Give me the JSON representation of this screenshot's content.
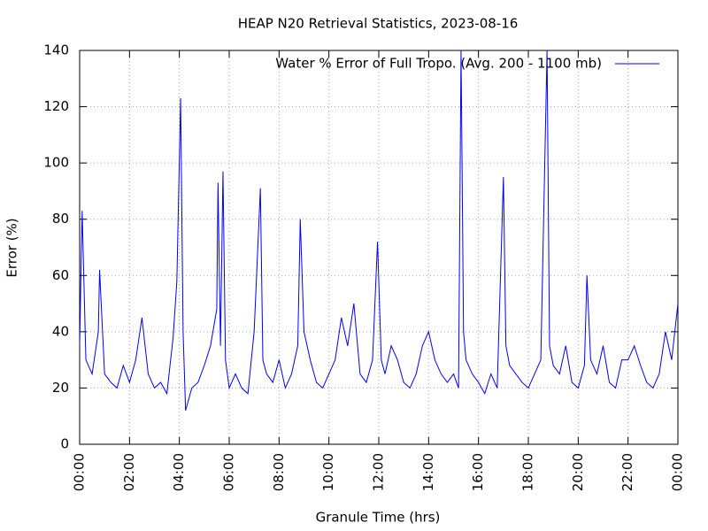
{
  "chart_data": {
    "type": "line",
    "title": "HEAP N20 Retrieval Statistics, 2023-08-16",
    "x_label": "Granule Time (hrs)",
    "y_label": "Error (%)",
    "x": [
      0,
      0.1,
      0.25,
      0.5,
      0.75,
      0.8,
      1,
      1.25,
      1.5,
      1.75,
      2,
      2.25,
      2.5,
      2.75,
      3,
      3.25,
      3.5,
      3.75,
      3.9,
      4.05,
      4.15,
      4.25,
      4.5,
      4.75,
      5,
      5.25,
      5.5,
      5.55,
      5.65,
      5.75,
      5.85,
      6,
      6.25,
      6.5,
      6.75,
      7,
      7.25,
      7.35,
      7.5,
      7.75,
      8,
      8.25,
      8.5,
      8.75,
      8.85,
      9,
      9.25,
      9.5,
      9.75,
      10,
      10.25,
      10.5,
      10.75,
      11,
      11.25,
      11.5,
      11.75,
      11.95,
      12.1,
      12.25,
      12.5,
      12.75,
      13,
      13.25,
      13.5,
      13.75,
      14,
      14.25,
      14.5,
      14.75,
      15,
      15.2,
      15.3,
      15.4,
      15.5,
      15.75,
      16,
      16.25,
      16.5,
      16.75,
      17,
      17.1,
      17.25,
      17.5,
      17.75,
      18,
      18.25,
      18.5,
      18.75,
      18.85,
      19,
      19.25,
      19.5,
      19.75,
      20,
      20.25,
      20.35,
      20.5,
      20.75,
      21,
      21.25,
      21.5,
      21.75,
      22,
      22.25,
      22.5,
      22.75,
      23,
      23.25,
      23.5,
      23.75,
      24
    ],
    "series": [
      {
        "name": "Water % Error of Full Tropo. (Avg. 200 - 1100 mb)",
        "color": "#0000ff",
        "values": [
          35,
          83,
          30,
          25,
          40,
          62,
          25,
          22,
          20,
          28,
          22,
          30,
          45,
          25,
          20,
          22,
          18,
          38,
          58,
          123,
          40,
          12,
          20,
          22,
          28,
          35,
          48,
          93,
          35,
          97,
          30,
          20,
          25,
          20,
          18,
          40,
          91,
          30,
          25,
          22,
          30,
          20,
          25,
          35,
          80,
          40,
          30,
          22,
          20,
          25,
          30,
          45,
          35,
          50,
          25,
          22,
          30,
          72,
          30,
          25,
          35,
          30,
          22,
          20,
          25,
          35,
          40,
          30,
          25,
          22,
          25,
          20,
          140,
          40,
          30,
          25,
          22,
          18,
          25,
          20,
          95,
          35,
          28,
          25,
          22,
          20,
          25,
          30,
          140,
          35,
          28,
          25,
          35,
          22,
          20,
          28,
          60,
          30,
          25,
          35,
          22,
          20,
          30,
          30,
          35,
          28,
          22,
          20,
          25,
          40,
          30,
          50
        ]
      }
    ],
    "xlim": [
      0,
      24
    ],
    "xticks": [
      {
        "value": 0,
        "label": "00:00"
      },
      {
        "value": 2,
        "label": "02:00"
      },
      {
        "value": 4,
        "label": "04:00"
      },
      {
        "value": 6,
        "label": "06:00"
      },
      {
        "value": 8,
        "label": "08:00"
      },
      {
        "value": 10,
        "label": "10:00"
      },
      {
        "value": 12,
        "label": "12:00"
      },
      {
        "value": 14,
        "label": "14:00"
      },
      {
        "value": 16,
        "label": "16:00"
      },
      {
        "value": 18,
        "label": "18:00"
      },
      {
        "value": 20,
        "label": "20:00"
      },
      {
        "value": 22,
        "label": "22:00"
      },
      {
        "value": 24,
        "label": "00:00"
      }
    ],
    "ylim": [
      0,
      140
    ],
    "yticks": [
      0,
      20,
      40,
      60,
      80,
      100,
      120,
      140
    ],
    "grid": true,
    "legend": "top-right"
  }
}
